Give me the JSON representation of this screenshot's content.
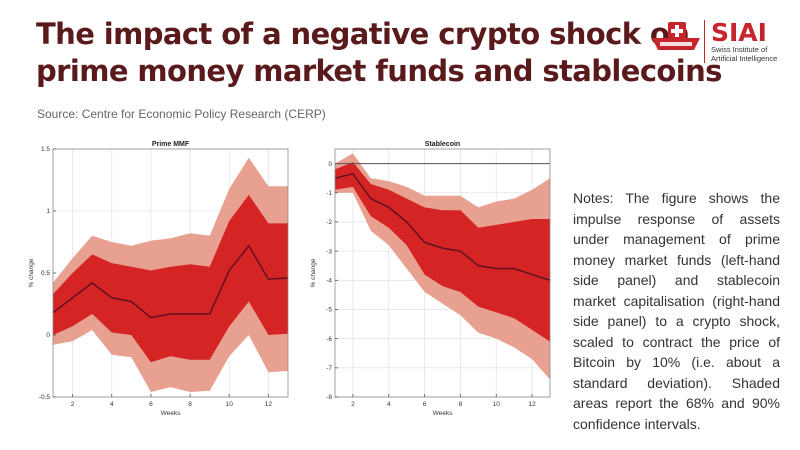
{
  "header": {
    "title_line1": "The impact of a negative crypto shock on",
    "title_line2": "prime money market funds and stablecoins",
    "source": "Source: Centre for Economic Policy Research (CERP)"
  },
  "logo": {
    "name": "SIAI",
    "subtitle_line1": "Swiss Institute of",
    "subtitle_line2": "Artificial Intelligence"
  },
  "colors": {
    "title": "#5a1a1c",
    "brand": "#c7252c",
    "band90": "#e8a090",
    "band68": "#d42424",
    "median_line": "#5a0f24"
  },
  "notes": "Notes: The figure shows the impulse response of assets under management of prime money market funds (left-hand side panel) and stablecoin market capitalisation (right-hand side panel) to a crypto shock, scaled to contract the price of Bitcoin by 10% (i.e. about a standard deviation). Shaded areas report the 68% and 90% confidence intervals.",
  "chart_data": [
    {
      "type": "area",
      "title": "Prime MMF",
      "xlabel": "Weeks",
      "ylabel": "% change",
      "xlim": [
        1,
        13
      ],
      "ylim": [
        -0.5,
        1.5
      ],
      "xticks": [
        2,
        4,
        6,
        8,
        10,
        12
      ],
      "xtick_labels": [
        "2",
        "4",
        "6",
        "8",
        "10",
        "12"
      ],
      "yticks": [
        -0.5,
        0,
        0.5,
        1,
        1.5
      ],
      "ytick_labels": [
        "-0.5",
        "0",
        "0.5",
        "1",
        "1.5"
      ],
      "grid": true,
      "x": [
        1,
        2,
        3,
        4,
        5,
        6,
        7,
        8,
        9,
        10,
        11,
        12,
        13
      ],
      "series": [
        {
          "name": "90% upper",
          "values": [
            0.42,
            0.62,
            0.8,
            0.75,
            0.72,
            0.76,
            0.78,
            0.82,
            0.8,
            1.18,
            1.43,
            1.2,
            1.2
          ]
        },
        {
          "name": "68% upper",
          "values": [
            0.33,
            0.5,
            0.65,
            0.58,
            0.55,
            0.52,
            0.55,
            0.57,
            0.55,
            0.92,
            1.13,
            0.9,
            0.9
          ]
        },
        {
          "name": "median",
          "values": [
            0.18,
            0.3,
            0.42,
            0.3,
            0.27,
            0.14,
            0.17,
            0.17,
            0.17,
            0.52,
            0.72,
            0.45,
            0.46
          ]
        },
        {
          "name": "68% lower",
          "values": [
            0.0,
            0.07,
            0.17,
            0.02,
            0.0,
            -0.22,
            -0.17,
            -0.2,
            -0.2,
            0.07,
            0.27,
            0.0,
            0.01
          ]
        },
        {
          "name": "90% lower",
          "values": [
            -0.08,
            -0.05,
            0.04,
            -0.16,
            -0.18,
            -0.46,
            -0.42,
            -0.46,
            -0.45,
            -0.17,
            0.0,
            -0.3,
            -0.29
          ]
        }
      ]
    },
    {
      "type": "area",
      "title": "Stablecoin",
      "xlabel": "Weeks",
      "ylabel": "% change",
      "xlim": [
        1,
        13
      ],
      "ylim": [
        -8,
        0.5
      ],
      "xticks": [
        2,
        4,
        6,
        8,
        10,
        12
      ],
      "xtick_labels": [
        "2",
        "4",
        "6",
        "8",
        "10",
        "12"
      ],
      "yticks": [
        0,
        -1,
        -2,
        -3,
        -4,
        -5,
        -6,
        -7,
        -8
      ],
      "ytick_labels": [
        "0",
        "-1",
        "-2",
        "-3",
        "-4",
        "-5",
        "-6",
        "-7",
        "-8"
      ],
      "grid": true,
      "zero_line": true,
      "x": [
        1,
        2,
        3,
        4,
        5,
        6,
        7,
        8,
        9,
        10,
        11,
        12,
        13
      ],
      "series": [
        {
          "name": "90% upper",
          "values": [
            0.0,
            0.35,
            -0.5,
            -0.6,
            -0.8,
            -1.1,
            -1.1,
            -1.1,
            -1.5,
            -1.3,
            -1.2,
            -0.9,
            -0.5
          ]
        },
        {
          "name": "68% upper",
          "values": [
            -0.2,
            0.05,
            -0.7,
            -0.9,
            -1.2,
            -1.5,
            -1.6,
            -1.6,
            -2.2,
            -2.1,
            -2.0,
            -1.9,
            -1.9
          ]
        },
        {
          "name": "median",
          "values": [
            -0.5,
            -0.35,
            -1.2,
            -1.5,
            -2.0,
            -2.7,
            -2.9,
            -3.0,
            -3.5,
            -3.6,
            -3.6,
            -3.8,
            -4.0
          ]
        },
        {
          "name": "68% lower",
          "values": [
            -0.9,
            -0.8,
            -1.8,
            -2.2,
            -2.8,
            -3.8,
            -4.2,
            -4.4,
            -4.9,
            -5.1,
            -5.3,
            -5.7,
            -6.1
          ]
        },
        {
          "name": "90% lower",
          "values": [
            -1.0,
            -1.0,
            -2.3,
            -2.8,
            -3.6,
            -4.4,
            -4.8,
            -5.2,
            -5.8,
            -6.0,
            -6.3,
            -6.7,
            -7.4
          ]
        }
      ]
    }
  ]
}
